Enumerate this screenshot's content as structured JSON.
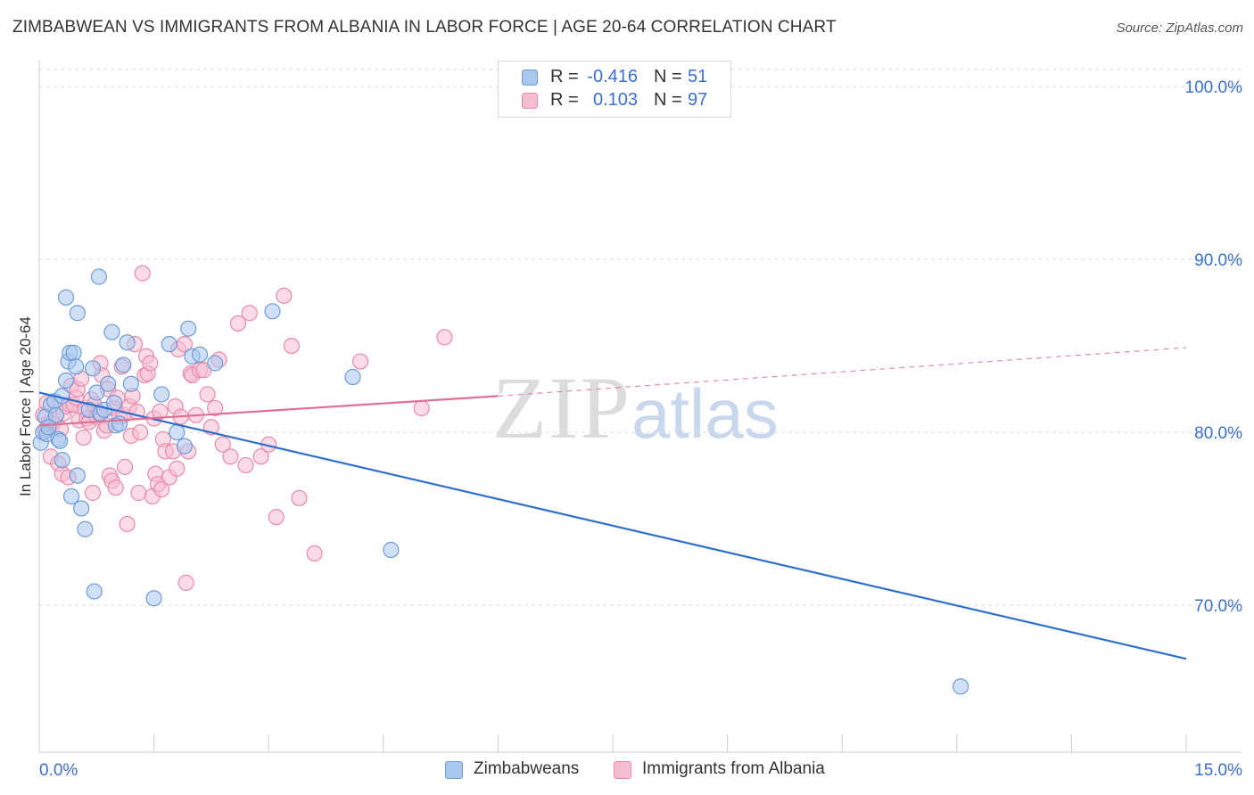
{
  "title": "ZIMBABWEAN VS IMMIGRANTS FROM ALBANIA IN LABOR FORCE | AGE 20-64 CORRELATION CHART",
  "source": "Source: ZipAtlas.com",
  "watermark": {
    "zip": "ZIP",
    "atlas": "atlas"
  },
  "legend_top": [
    {
      "r_label": "R =",
      "r_value": "-0.416",
      "n_label": "N =",
      "n_value": "51"
    },
    {
      "r_label": "R =",
      "r_value": "0.103",
      "n_label": "N =",
      "n_value": "97"
    }
  ],
  "legend_bottom": [
    "Zimbabweans",
    "Immigrants from Albania"
  ],
  "colors": {
    "blue_fill": "#a8c6ee",
    "blue_stroke": "#6f9bd8",
    "blue_line": "#2f6fcc",
    "pink_fill": "#f6bcd0",
    "pink_stroke": "#e98aab",
    "pink_line": "#e06f96",
    "axis_text": "#3b6fd4",
    "grid": "#dddddd"
  },
  "chart_data": {
    "type": "scatter",
    "title": "ZIMBABWEAN VS IMMIGRANTS FROM ALBANIA IN LABOR FORCE | AGE 20-64 CORRELATION CHART",
    "xlabel": "",
    "ylabel": "In Labor Force | Age 20-64",
    "xlim": [
      0,
      15
    ],
    "ylim": [
      61.5,
      101.5
    ],
    "x_tick_labels": [
      "0.0%",
      "15.0%"
    ],
    "y_ticks": [
      70,
      80,
      90,
      100
    ],
    "y_tick_labels": [
      "70.0%",
      "80.0%",
      "90.0%",
      "100.0%"
    ],
    "series": [
      {
        "name": "Zimbabweans",
        "R": -0.416,
        "N": 51,
        "trend": {
          "x0": 0.0,
          "y0": 82.3,
          "x1": 15.0,
          "y1": 66.9
        },
        "points": [
          [
            0.02,
            79.4
          ],
          [
            0.05,
            80.0
          ],
          [
            0.08,
            80.9
          ],
          [
            0.1,
            79.9
          ],
          [
            0.12,
            80.3
          ],
          [
            0.15,
            81.6
          ],
          [
            0.2,
            81.8
          ],
          [
            0.22,
            81.0
          ],
          [
            0.25,
            79.6
          ],
          [
            0.27,
            79.5
          ],
          [
            0.3,
            82.1
          ],
          [
            0.3,
            78.4
          ],
          [
            0.35,
            87.8
          ],
          [
            0.35,
            83.0
          ],
          [
            0.38,
            84.1
          ],
          [
            0.4,
            84.6
          ],
          [
            0.42,
            76.3
          ],
          [
            0.45,
            84.6
          ],
          [
            0.48,
            83.8
          ],
          [
            0.5,
            86.9
          ],
          [
            0.5,
            77.5
          ],
          [
            0.55,
            75.6
          ],
          [
            0.6,
            74.4
          ],
          [
            0.65,
            81.3
          ],
          [
            0.7,
            83.7
          ],
          [
            0.72,
            70.8
          ],
          [
            0.75,
            82.3
          ],
          [
            0.78,
            89.0
          ],
          [
            0.8,
            81.1
          ],
          [
            0.85,
            81.3
          ],
          [
            0.9,
            82.8
          ],
          [
            0.95,
            85.8
          ],
          [
            0.98,
            81.7
          ],
          [
            1.0,
            80.4
          ],
          [
            1.05,
            80.5
          ],
          [
            1.1,
            83.9
          ],
          [
            1.15,
            85.2
          ],
          [
            1.2,
            82.8
          ],
          [
            1.5,
            70.4
          ],
          [
            1.6,
            82.2
          ],
          [
            1.7,
            85.1
          ],
          [
            1.8,
            80.0
          ],
          [
            1.9,
            79.2
          ],
          [
            1.95,
            86.0
          ],
          [
            2.0,
            84.4
          ],
          [
            2.1,
            84.5
          ],
          [
            2.3,
            84.0
          ],
          [
            3.05,
            87.0
          ],
          [
            4.1,
            83.2
          ],
          [
            4.6,
            73.2
          ],
          [
            12.05,
            65.3
          ]
        ]
      },
      {
        "name": "Immigrants from Albania",
        "R": 0.103,
        "N": 97,
        "trend": {
          "x0": 0.0,
          "y0": 80.4,
          "x1": 6.0,
          "y1": 82.1,
          "dashed_to": {
            "x": 15.0,
            "y": 84.9
          }
        },
        "points": [
          [
            0.05,
            81.0
          ],
          [
            0.08,
            80.1
          ],
          [
            0.1,
            81.7
          ],
          [
            0.12,
            80.5
          ],
          [
            0.15,
            78.6
          ],
          [
            0.18,
            80.5
          ],
          [
            0.2,
            80.7
          ],
          [
            0.25,
            78.2
          ],
          [
            0.28,
            80.2
          ],
          [
            0.3,
            77.6
          ],
          [
            0.32,
            81.1
          ],
          [
            0.35,
            81.5
          ],
          [
            0.38,
            77.4
          ],
          [
            0.4,
            81.6
          ],
          [
            0.42,
            82.7
          ],
          [
            0.45,
            81.6
          ],
          [
            0.48,
            82.0
          ],
          [
            0.5,
            82.5
          ],
          [
            0.52,
            80.7
          ],
          [
            0.55,
            83.1
          ],
          [
            0.58,
            79.7
          ],
          [
            0.6,
            81.3
          ],
          [
            0.62,
            80.8
          ],
          [
            0.65,
            80.6
          ],
          [
            0.68,
            81.9
          ],
          [
            0.7,
            76.5
          ],
          [
            0.72,
            81.6
          ],
          [
            0.75,
            80.9
          ],
          [
            0.78,
            81.1
          ],
          [
            0.8,
            84.0
          ],
          [
            0.82,
            83.3
          ],
          [
            0.85,
            80.1
          ],
          [
            0.88,
            80.4
          ],
          [
            0.9,
            82.5
          ],
          [
            0.92,
            77.5
          ],
          [
            0.95,
            77.2
          ],
          [
            0.98,
            81.4
          ],
          [
            1.0,
            76.8
          ],
          [
            1.02,
            82.0
          ],
          [
            1.05,
            80.9
          ],
          [
            1.08,
            83.8
          ],
          [
            1.1,
            81.0
          ],
          [
            1.12,
            78.0
          ],
          [
            1.15,
            74.7
          ],
          [
            1.18,
            81.5
          ],
          [
            1.2,
            79.8
          ],
          [
            1.22,
            82.1
          ],
          [
            1.25,
            85.1
          ],
          [
            1.28,
            81.2
          ],
          [
            1.3,
            76.5
          ],
          [
            1.32,
            80.0
          ],
          [
            1.35,
            89.2
          ],
          [
            1.38,
            83.3
          ],
          [
            1.4,
            84.4
          ],
          [
            1.42,
            83.4
          ],
          [
            1.45,
            84.0
          ],
          [
            1.48,
            76.3
          ],
          [
            1.5,
            80.8
          ],
          [
            1.52,
            77.6
          ],
          [
            1.55,
            77.0
          ],
          [
            1.58,
            81.2
          ],
          [
            1.6,
            76.7
          ],
          [
            1.62,
            79.6
          ],
          [
            1.65,
            78.9
          ],
          [
            1.7,
            77.4
          ],
          [
            1.75,
            78.9
          ],
          [
            1.78,
            81.5
          ],
          [
            1.8,
            77.9
          ],
          [
            1.82,
            84.8
          ],
          [
            1.85,
            80.9
          ],
          [
            1.9,
            85.1
          ],
          [
            1.92,
            71.3
          ],
          [
            1.95,
            78.9
          ],
          [
            1.98,
            83.4
          ],
          [
            2.0,
            83.3
          ],
          [
            2.05,
            81.0
          ],
          [
            2.1,
            83.6
          ],
          [
            2.15,
            83.6
          ],
          [
            2.2,
            82.2
          ],
          [
            2.25,
            80.3
          ],
          [
            2.3,
            81.4
          ],
          [
            2.35,
            84.2
          ],
          [
            2.4,
            79.3
          ],
          [
            2.5,
            78.6
          ],
          [
            2.6,
            86.3
          ],
          [
            2.7,
            78.1
          ],
          [
            2.75,
            86.9
          ],
          [
            2.9,
            78.6
          ],
          [
            3.0,
            79.3
          ],
          [
            3.1,
            75.1
          ],
          [
            3.2,
            87.9
          ],
          [
            3.3,
            85.0
          ],
          [
            3.4,
            76.2
          ],
          [
            3.6,
            73.0
          ],
          [
            4.2,
            84.1
          ],
          [
            5.0,
            81.4
          ],
          [
            5.3,
            85.5
          ]
        ]
      }
    ]
  }
}
